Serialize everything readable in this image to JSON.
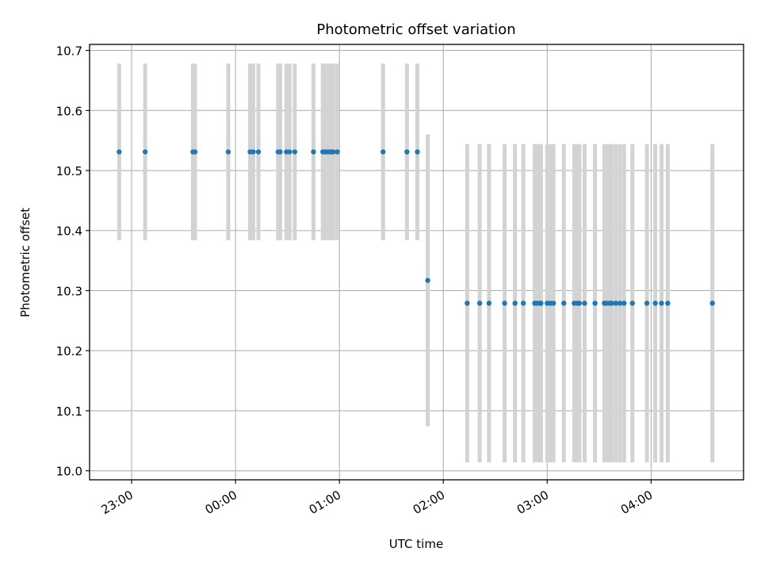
{
  "chart_data": {
    "type": "scatter",
    "title": "Photometric offset variation",
    "xlabel": "UTC time",
    "ylabel": "Photometric offset",
    "x_unit": "UTC time of night, hours (after midnight; negative = before 00:00)",
    "xlim": [
      -1.405,
      4.89
    ],
    "ylim": [
      9.985,
      10.71
    ],
    "x_ticks": [
      {
        "value": -1.0,
        "label": "23:00"
      },
      {
        "value": 0.0,
        "label": "00:00"
      },
      {
        "value": 1.0,
        "label": "01:00"
      },
      {
        "value": 2.0,
        "label": "02:00"
      },
      {
        "value": 3.0,
        "label": "03:00"
      },
      {
        "value": 4.0,
        "label": "04:00"
      }
    ],
    "y_ticks": [
      {
        "value": 10.0,
        "label": "10.0"
      },
      {
        "value": 10.1,
        "label": "10.1"
      },
      {
        "value": 10.2,
        "label": "10.2"
      },
      {
        "value": 10.3,
        "label": "10.3"
      },
      {
        "value": 10.4,
        "label": "10.4"
      },
      {
        "value": 10.5,
        "label": "10.5"
      },
      {
        "value": 10.6,
        "label": "10.6"
      },
      {
        "value": 10.7,
        "label": "10.7"
      }
    ],
    "grid": true,
    "point_color": "#1f77b4",
    "errorbar_color": "#d3d3d3",
    "series": [
      {
        "y": 10.531,
        "error": 0.147,
        "x": [
          -1.12,
          -0.87,
          -0.41,
          -0.39,
          -0.07,
          0.14,
          0.17,
          0.22,
          0.41,
          0.43,
          0.49,
          0.52,
          0.57,
          0.75,
          0.84,
          0.86,
          0.88,
          0.9,
          0.92,
          0.94,
          0.98,
          1.42,
          1.65,
          1.75
        ]
      },
      {
        "y": 10.317,
        "error": 0.243,
        "x": [
          1.85
        ]
      },
      {
        "y": 10.279,
        "error": 0.265,
        "x": [
          2.23,
          2.35,
          2.44,
          2.59,
          2.69,
          2.77,
          2.88,
          2.9,
          2.93,
          2.94,
          3.0,
          3.03,
          3.06,
          3.16,
          3.26,
          3.29,
          3.31,
          3.36,
          3.46,
          3.55,
          3.57,
          3.6,
          3.62,
          3.66,
          3.7,
          3.74,
          3.82,
          3.96,
          4.04,
          4.1,
          4.16,
          4.59
        ]
      }
    ]
  }
}
